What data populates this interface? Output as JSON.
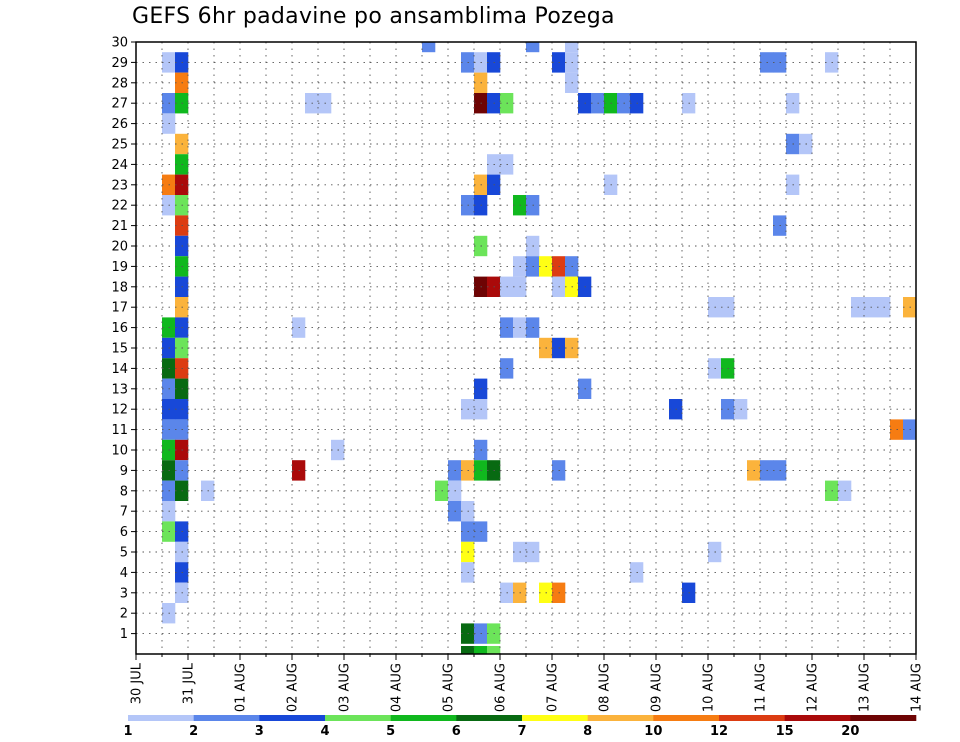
{
  "chart_data": {
    "type": "heatmap",
    "title": "GEFS 6hr padavine po ansamblima Pozega",
    "xlabel": "",
    "ylabel": "",
    "x_tick_labels": [
      "30 JUL",
      "31 JUL",
      "01 AUG",
      "02 AUG",
      "03 AUG",
      "04 AUG",
      "05 AUG",
      "06 AUG",
      "07 AUG",
      "08 AUG",
      "09 AUG",
      "10 AUG",
      "11 AUG",
      "12 AUG",
      "13 AUG",
      "14 AUG"
    ],
    "y_tick_labels": [
      1,
      2,
      3,
      4,
      5,
      6,
      7,
      8,
      9,
      10,
      11,
      12,
      13,
      14,
      15,
      16,
      17,
      18,
      19,
      20,
      21,
      22,
      23,
      24,
      25,
      26,
      27,
      28,
      29,
      30
    ],
    "ylim": [
      0,
      30
    ],
    "x_steps_per_day": 4,
    "grid": true,
    "colorbar": {
      "levels": [
        1,
        2,
        3,
        4,
        5,
        6,
        7,
        8,
        10,
        12,
        15,
        20
      ],
      "colors": [
        "#b4c6f8",
        "#5b86ea",
        "#1848d8",
        "#6ce45a",
        "#10b81e",
        "#086a12",
        "#ffff14",
        "#fbb33c",
        "#f67c12",
        "#dc3c12",
        "#aa0a0a",
        "#6e0404"
      ]
    },
    "cells": [
      {
        "member": 30,
        "step": 22,
        "cat": 1
      },
      {
        "member": 30,
        "step": 30,
        "cat": 1
      },
      {
        "member": 30,
        "step": 33,
        "cat": 0
      },
      {
        "member": 29,
        "step": 2,
        "cat": 0
      },
      {
        "member": 29,
        "step": 3,
        "cat": 2
      },
      {
        "member": 29,
        "step": 25,
        "cat": 1
      },
      {
        "member": 29,
        "step": 26,
        "cat": 0
      },
      {
        "member": 29,
        "step": 27,
        "cat": 2
      },
      {
        "member": 29,
        "step": 32,
        "cat": 2
      },
      {
        "member": 29,
        "step": 33,
        "cat": 0
      },
      {
        "member": 29,
        "step": 48,
        "cat": 1
      },
      {
        "member": 29,
        "step": 49,
        "cat": 1
      },
      {
        "member": 29,
        "step": 53,
        "cat": 0
      },
      {
        "member": 28,
        "step": 3,
        "cat": 8
      },
      {
        "member": 28,
        "step": 26,
        "cat": 7
      },
      {
        "member": 28,
        "step": 33,
        "cat": 0
      },
      {
        "member": 27,
        "step": 2,
        "cat": 1
      },
      {
        "member": 27,
        "step": 3,
        "cat": 4
      },
      {
        "member": 27,
        "step": 13,
        "cat": 0
      },
      {
        "member": 27,
        "step": 14,
        "cat": 0
      },
      {
        "member": 27,
        "step": 26,
        "cat": 11
      },
      {
        "member": 27,
        "step": 27,
        "cat": 2
      },
      {
        "member": 27,
        "step": 28,
        "cat": 3
      },
      {
        "member": 27,
        "step": 34,
        "cat": 2
      },
      {
        "member": 27,
        "step": 35,
        "cat": 1
      },
      {
        "member": 27,
        "step": 36,
        "cat": 4
      },
      {
        "member": 27,
        "step": 37,
        "cat": 1
      },
      {
        "member": 27,
        "step": 38,
        "cat": 2
      },
      {
        "member": 27,
        "step": 42,
        "cat": 0
      },
      {
        "member": 27,
        "step": 50,
        "cat": 0
      },
      {
        "member": 26,
        "step": 2,
        "cat": 0
      },
      {
        "member": 25,
        "step": 3,
        "cat": 7
      },
      {
        "member": 25,
        "step": 50,
        "cat": 1
      },
      {
        "member": 25,
        "step": 51,
        "cat": 0
      },
      {
        "member": 24,
        "step": 3,
        "cat": 4
      },
      {
        "member": 24,
        "step": 27,
        "cat": 0
      },
      {
        "member": 24,
        "step": 28,
        "cat": 0
      },
      {
        "member": 23,
        "step": 2,
        "cat": 8
      },
      {
        "member": 23,
        "step": 3,
        "cat": 10
      },
      {
        "member": 23,
        "step": 26,
        "cat": 7
      },
      {
        "member": 23,
        "step": 27,
        "cat": 2
      },
      {
        "member": 23,
        "step": 36,
        "cat": 0
      },
      {
        "member": 23,
        "step": 50,
        "cat": 0
      },
      {
        "member": 22,
        "step": 2,
        "cat": 0
      },
      {
        "member": 22,
        "step": 3,
        "cat": 3
      },
      {
        "member": 22,
        "step": 25,
        "cat": 1
      },
      {
        "member": 22,
        "step": 26,
        "cat": 2
      },
      {
        "member": 22,
        "step": 29,
        "cat": 4
      },
      {
        "member": 22,
        "step": 30,
        "cat": 1
      },
      {
        "member": 21,
        "step": 3,
        "cat": 9
      },
      {
        "member": 21,
        "step": 49,
        "cat": 1
      },
      {
        "member": 20,
        "step": 3,
        "cat": 2
      },
      {
        "member": 20,
        "step": 26,
        "cat": 3
      },
      {
        "member": 20,
        "step": 30,
        "cat": 0
      },
      {
        "member": 19,
        "step": 3,
        "cat": 4
      },
      {
        "member": 19,
        "step": 29,
        "cat": 0
      },
      {
        "member": 19,
        "step": 30,
        "cat": 1
      },
      {
        "member": 19,
        "step": 31,
        "cat": 6
      },
      {
        "member": 19,
        "step": 32,
        "cat": 9
      },
      {
        "member": 19,
        "step": 33,
        "cat": 1
      },
      {
        "member": 18,
        "step": 3,
        "cat": 2
      },
      {
        "member": 18,
        "step": 26,
        "cat": 11
      },
      {
        "member": 18,
        "step": 27,
        "cat": 10
      },
      {
        "member": 18,
        "step": 28,
        "cat": 0
      },
      {
        "member": 18,
        "step": 29,
        "cat": 0
      },
      {
        "member": 18,
        "step": 32,
        "cat": 0
      },
      {
        "member": 18,
        "step": 33,
        "cat": 6
      },
      {
        "member": 18,
        "step": 34,
        "cat": 2
      },
      {
        "member": 17,
        "step": 3,
        "cat": 7
      },
      {
        "member": 17,
        "step": 44,
        "cat": 0
      },
      {
        "member": 17,
        "step": 45,
        "cat": 0
      },
      {
        "member": 17,
        "step": 55,
        "cat": 0
      },
      {
        "member": 17,
        "step": 56,
        "cat": 0
      },
      {
        "member": 17,
        "step": 57,
        "cat": 0
      },
      {
        "member": 17,
        "step": 59,
        "cat": 7
      },
      {
        "member": 16,
        "step": 2,
        "cat": 4
      },
      {
        "member": 16,
        "step": 3,
        "cat": 2
      },
      {
        "member": 16,
        "step": 12,
        "cat": 0
      },
      {
        "member": 16,
        "step": 28,
        "cat": 1
      },
      {
        "member": 16,
        "step": 29,
        "cat": 0
      },
      {
        "member": 16,
        "step": 30,
        "cat": 1
      },
      {
        "member": 15,
        "step": 2,
        "cat": 2
      },
      {
        "member": 15,
        "step": 3,
        "cat": 3
      },
      {
        "member": 15,
        "step": 31,
        "cat": 7
      },
      {
        "member": 15,
        "step": 32,
        "cat": 2
      },
      {
        "member": 15,
        "step": 33,
        "cat": 7
      },
      {
        "member": 14,
        "step": 2,
        "cat": 5
      },
      {
        "member": 14,
        "step": 3,
        "cat": 9
      },
      {
        "member": 14,
        "step": 28,
        "cat": 1
      },
      {
        "member": 14,
        "step": 44,
        "cat": 0
      },
      {
        "member": 14,
        "step": 45,
        "cat": 4
      },
      {
        "member": 13,
        "step": 2,
        "cat": 1
      },
      {
        "member": 13,
        "step": 3,
        "cat": 5
      },
      {
        "member": 13,
        "step": 26,
        "cat": 2
      },
      {
        "member": 13,
        "step": 34,
        "cat": 1
      },
      {
        "member": 12,
        "step": 2,
        "cat": 2
      },
      {
        "member": 12,
        "step": 3,
        "cat": 2
      },
      {
        "member": 12,
        "step": 25,
        "cat": 0
      },
      {
        "member": 12,
        "step": 26,
        "cat": 0
      },
      {
        "member": 12,
        "step": 41,
        "cat": 2
      },
      {
        "member": 12,
        "step": 45,
        "cat": 1
      },
      {
        "member": 12,
        "step": 46,
        "cat": 0
      },
      {
        "member": 11,
        "step": 2,
        "cat": 1
      },
      {
        "member": 11,
        "step": 3,
        "cat": 1
      },
      {
        "member": 11,
        "step": 58,
        "cat": 8
      },
      {
        "member": 11,
        "step": 59,
        "cat": 1
      },
      {
        "member": 10,
        "step": 2,
        "cat": 4
      },
      {
        "member": 10,
        "step": 3,
        "cat": 10
      },
      {
        "member": 10,
        "step": 15,
        "cat": 0
      },
      {
        "member": 10,
        "step": 26,
        "cat": 1
      },
      {
        "member": 9,
        "step": 2,
        "cat": 5
      },
      {
        "member": 9,
        "step": 3,
        "cat": 1
      },
      {
        "member": 9,
        "step": 12,
        "cat": 10
      },
      {
        "member": 9,
        "step": 24,
        "cat": 1
      },
      {
        "member": 9,
        "step": 25,
        "cat": 7
      },
      {
        "member": 9,
        "step": 26,
        "cat": 4
      },
      {
        "member": 9,
        "step": 27,
        "cat": 5
      },
      {
        "member": 9,
        "step": 32,
        "cat": 1
      },
      {
        "member": 9,
        "step": 47,
        "cat": 7
      },
      {
        "member": 9,
        "step": 48,
        "cat": 1
      },
      {
        "member": 9,
        "step": 49,
        "cat": 1
      },
      {
        "member": 8,
        "step": 2,
        "cat": 1
      },
      {
        "member": 8,
        "step": 3,
        "cat": 5
      },
      {
        "member": 8,
        "step": 5,
        "cat": 0
      },
      {
        "member": 8,
        "step": 23,
        "cat": 3
      },
      {
        "member": 8,
        "step": 24,
        "cat": 0
      },
      {
        "member": 8,
        "step": 53,
        "cat": 3
      },
      {
        "member": 8,
        "step": 54,
        "cat": 0
      },
      {
        "member": 7,
        "step": 2,
        "cat": 0
      },
      {
        "member": 7,
        "step": 24,
        "cat": 1
      },
      {
        "member": 7,
        "step": 25,
        "cat": 0
      },
      {
        "member": 6,
        "step": 2,
        "cat": 3
      },
      {
        "member": 6,
        "step": 3,
        "cat": 2
      },
      {
        "member": 6,
        "step": 25,
        "cat": 1
      },
      {
        "member": 6,
        "step": 26,
        "cat": 1
      },
      {
        "member": 5,
        "step": 3,
        "cat": 0
      },
      {
        "member": 5,
        "step": 25,
        "cat": 6
      },
      {
        "member": 5,
        "step": 29,
        "cat": 0
      },
      {
        "member": 5,
        "step": 30,
        "cat": 0
      },
      {
        "member": 5,
        "step": 44,
        "cat": 0
      },
      {
        "member": 4,
        "step": 3,
        "cat": 2
      },
      {
        "member": 4,
        "step": 25,
        "cat": 0
      },
      {
        "member": 4,
        "step": 38,
        "cat": 0
      },
      {
        "member": 3,
        "step": 3,
        "cat": 0
      },
      {
        "member": 3,
        "step": 28,
        "cat": 0
      },
      {
        "member": 3,
        "step": 29,
        "cat": 7
      },
      {
        "member": 3,
        "step": 31,
        "cat": 6
      },
      {
        "member": 3,
        "step": 32,
        "cat": 8
      },
      {
        "member": 3,
        "step": 42,
        "cat": 2
      },
      {
        "member": 2,
        "step": 2,
        "cat": 0
      },
      {
        "member": 1,
        "step": 25,
        "cat": 5
      },
      {
        "member": 1,
        "step": 26,
        "cat": 1
      },
      {
        "member": 1,
        "step": 27,
        "cat": 3
      }
    ]
  }
}
